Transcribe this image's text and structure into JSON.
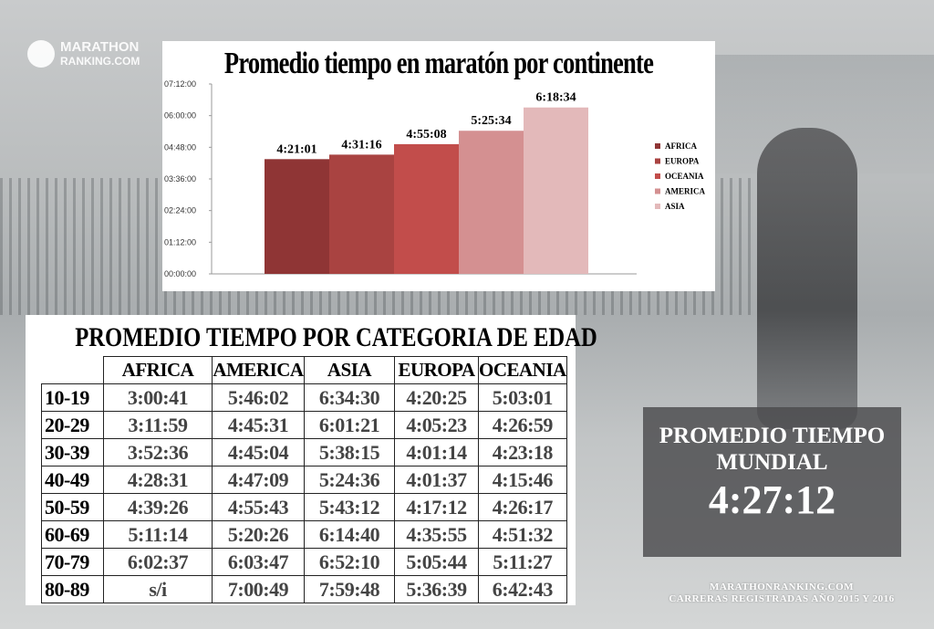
{
  "logo": {
    "line1": "MARATHON",
    "line2": "RANKING.COM"
  },
  "chart_data": {
    "type": "bar",
    "title": "Promedio tiempo en maratón por continente",
    "categories": [
      "AFRICA",
      "EUROPA",
      "OCEANIA",
      "AMERICA",
      "ASIA"
    ],
    "values_seconds": [
      15661,
      16276,
      17708,
      19534,
      22714
    ],
    "data_labels": [
      "4:21:01",
      "4:31:16",
      "4:55:08",
      "5:25:34",
      "6:18:34"
    ],
    "colors": [
      "#8f3535",
      "#a94341",
      "#c24d4b",
      "#d49091",
      "#e3b9ba"
    ],
    "ylim_seconds": [
      0,
      25920
    ],
    "yticks": [
      "00:00:00",
      "01:12:00",
      "02:24:00",
      "03:36:00",
      "04:48:00",
      "06:00:00",
      "07:12:00"
    ],
    "legend": [
      "AFRICA",
      "EUROPA",
      "OCEANIA",
      "AMERICA",
      "ASIA"
    ],
    "legend_position": "right",
    "xlabel": "",
    "ylabel": ""
  },
  "age_table": {
    "title": "PROMEDIO TIEMPO POR CATEGORIA DE EDAD",
    "columns": [
      "AFRICA",
      "AMERICA",
      "ASIA",
      "EUROPA",
      "OCEANIA"
    ],
    "rows": [
      {
        "label": "10-19",
        "values": [
          "3:00:41",
          "5:46:02",
          "6:34:30",
          "4:20:25",
          "5:03:01"
        ]
      },
      {
        "label": "20-29",
        "values": [
          "3:11:59",
          "4:45:31",
          "6:01:21",
          "4:05:23",
          "4:26:59"
        ]
      },
      {
        "label": "30-39",
        "values": [
          "3:52:36",
          "4:45:04",
          "5:38:15",
          "4:01:14",
          "4:23:18"
        ]
      },
      {
        "label": "40-49",
        "values": [
          "4:28:31",
          "4:47:09",
          "5:24:36",
          "4:01:37",
          "4:15:46"
        ]
      },
      {
        "label": "50-59",
        "values": [
          "4:39:26",
          "4:55:43",
          "5:43:12",
          "4:17:12",
          "4:26:17"
        ]
      },
      {
        "label": "60-69",
        "values": [
          "5:11:14",
          "5:20:26",
          "6:14:40",
          "4:35:55",
          "4:51:32"
        ]
      },
      {
        "label": "70-79",
        "values": [
          "6:02:37",
          "6:03:47",
          "6:52:10",
          "5:05:44",
          "5:11:27"
        ]
      },
      {
        "label": "80-89",
        "values": [
          "s/i",
          "7:00:49",
          "7:59:48",
          "5:36:39",
          "6:42:43"
        ]
      }
    ]
  },
  "world": {
    "line1": "PROMEDIO TIEMPO",
    "line2": "MUNDIAL",
    "value": "4:27:12"
  },
  "footer": {
    "line1": "MARATHONRANKING.COM",
    "line2": "CARRERAS REGISTRADAS AÑO 2015 Y 2016"
  }
}
